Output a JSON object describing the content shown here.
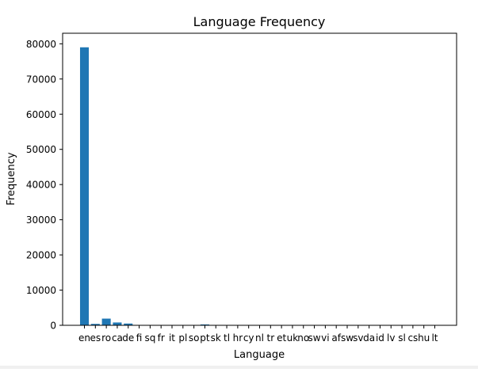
{
  "chart_data": {
    "type": "bar",
    "title": "Language Frequency",
    "xlabel": "Language",
    "ylabel": "Frequency",
    "ylim": [
      0,
      83000
    ],
    "yticks": [
      0,
      10000,
      20000,
      30000,
      40000,
      50000,
      60000,
      70000,
      80000
    ],
    "bar_color": "#1f77b4",
    "grid": false,
    "categories": [
      "en",
      "es",
      "ro",
      "ca",
      "de",
      "fi",
      "sq",
      "fr",
      "it",
      "pl",
      "so",
      "pt",
      "sk",
      "tl",
      "hr",
      "cy",
      "nl",
      "tr",
      "et",
      "uk",
      "no",
      "sw",
      "vi",
      "af",
      "sw",
      "sv",
      "da",
      "id",
      "lv",
      "sl",
      "cs",
      "hu",
      "lt"
    ],
    "values": [
      79000,
      400,
      1900,
      800,
      500,
      30,
      30,
      30,
      30,
      30,
      30,
      250,
      30,
      30,
      30,
      30,
      30,
      30,
      30,
      30,
      30,
      30,
      30,
      30,
      30,
      30,
      30,
      30,
      30,
      30,
      30,
      30,
      30
    ]
  }
}
